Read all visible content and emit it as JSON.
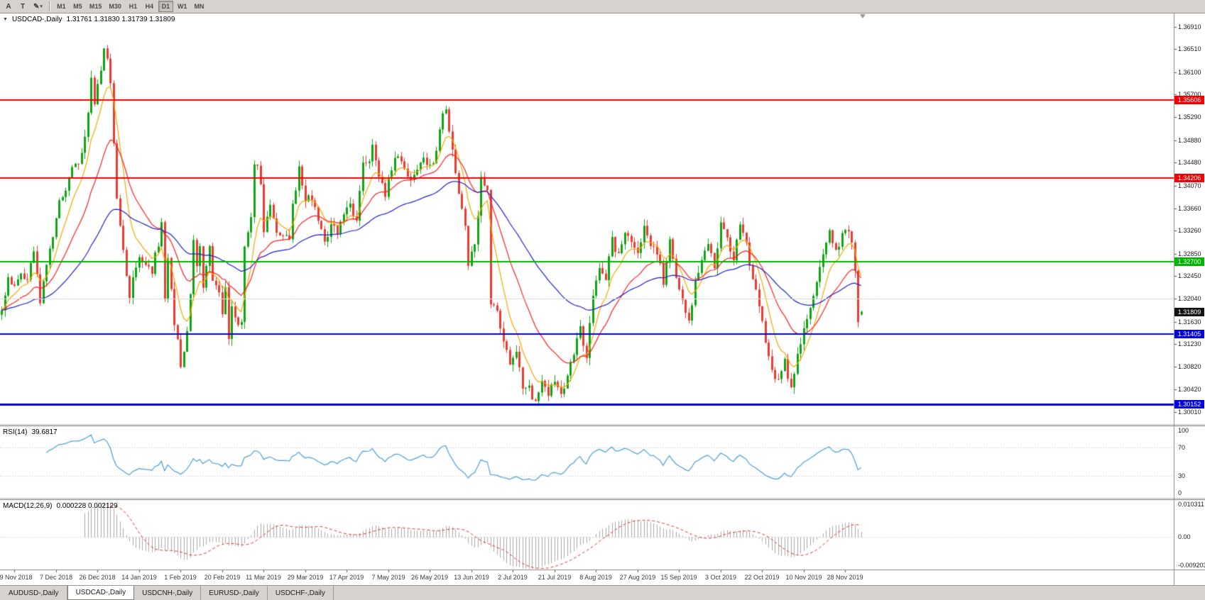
{
  "toolbar": {
    "tools": [
      {
        "name": "cursor-tool",
        "glyph": "A"
      },
      {
        "name": "text-tool",
        "glyph": "T"
      },
      {
        "name": "draw-tool",
        "glyph": "✎"
      }
    ],
    "dropdown_glyph": "▾",
    "timeframes": [
      "M1",
      "M5",
      "M15",
      "M30",
      "H1",
      "H4",
      "D1",
      "W1",
      "MN"
    ],
    "active_timeframe": "D1"
  },
  "chart": {
    "menu_icon": "▼",
    "title": "USDCAD-,Daily",
    "ohlc": "1.31761 1.31830 1.31739 1.31809",
    "last_candle": {
      "o": 1.31761,
      "h": 1.3183,
      "l": 1.31739,
      "c": 1.31809
    },
    "current_price": {
      "label": "1.31809",
      "price": 1.31809
    },
    "y_max": 1.3715,
    "y_min": 1.2981,
    "y_ticks": [
      "1.36910",
      "1.36510",
      "1.36100",
      "1.35700",
      "1.35290",
      "1.34880",
      "1.34480",
      "1.34070",
      "1.33660",
      "1.33260",
      "1.32850",
      "1.32450",
      "1.32040",
      "1.31630",
      "1.31230",
      "1.30820",
      "1.30420",
      "1.30010"
    ],
    "hlines": [
      {
        "price": 1.35606,
        "color": "#f40000",
        "width": 2,
        "badge": "1.35606"
      },
      {
        "price": 1.34206,
        "color": "#f40000",
        "width": 2,
        "badge": "1.34206"
      },
      {
        "price": 1.327,
        "color": "#00b400",
        "width": 2,
        "badge": "1.32700"
      },
      {
        "price": 1.3204,
        "color": "#d8d8d8",
        "width": 1,
        "badge": ""
      },
      {
        "price": 1.31405,
        "color": "#0000e1",
        "width": 2,
        "badge": "1.31405"
      },
      {
        "price": 1.30152,
        "color": "#0000e1",
        "width": 3,
        "badge": "1.30152"
      }
    ],
    "colors": {
      "bull": "#10a312",
      "bear": "#ea3b33",
      "ma_fast": "#f2a900",
      "ma_mid": "#ff1e1e",
      "ma_slow": "#1f1fd0"
    },
    "bars": 270,
    "x_labels": [
      "19 Nov 2018",
      "7 Dec 2018",
      "26 Dec 2018",
      "14 Jan 2019",
      "1 Feb 2019",
      "20 Feb 2019",
      "11 Mar 2019",
      "29 Mar 2019",
      "17 Apr 2019",
      "7 May 2019",
      "26 May 2019",
      "13 Jun 2019",
      "2 Jul 2019",
      "21 Jul 2019",
      "8 Aug 2019",
      "27 Aug 2019",
      "15 Sep 2019",
      "3 Oct 2019",
      "22 Oct 2019",
      "10 Nov 2019",
      "28 Nov 2019"
    ],
    "price_path": [
      [
        0,
        1.3185
      ],
      [
        2,
        1.3245
      ],
      [
        4,
        1.3225
      ],
      [
        6,
        1.3255
      ],
      [
        8,
        1.324
      ],
      [
        10,
        1.329
      ],
      [
        12,
        1.3195
      ],
      [
        14,
        1.327
      ],
      [
        16,
        1.332
      ],
      [
        18,
        1.338
      ],
      [
        20,
        1.3395
      ],
      [
        22,
        1.344
      ],
      [
        24,
        1.345
      ],
      [
        26,
        1.349
      ],
      [
        28,
        1.36
      ],
      [
        29,
        1.356
      ],
      [
        31,
        1.362
      ],
      [
        32,
        1.365
      ],
      [
        33,
        1.363
      ],
      [
        34,
        1.3595
      ],
      [
        35,
        1.348
      ],
      [
        36,
        1.338
      ],
      [
        38,
        1.329
      ],
      [
        40,
        1.32
      ],
      [
        41,
        1.325
      ],
      [
        43,
        1.3275
      ],
      [
        45,
        1.326
      ],
      [
        47,
        1.3255
      ],
      [
        49,
        1.3305
      ],
      [
        50,
        1.334
      ],
      [
        51,
        1.321
      ],
      [
        52,
        1.3275
      ],
      [
        54,
        1.316
      ],
      [
        55,
        1.313
      ],
      [
        56,
        1.308
      ],
      [
        57,
        1.3115
      ],
      [
        58,
        1.3145
      ],
      [
        59,
        1.322
      ],
      [
        60,
        1.331
      ],
      [
        61,
        1.327
      ],
      [
        62,
        1.33
      ],
      [
        63,
        1.323
      ],
      [
        65,
        1.33
      ],
      [
        66,
        1.324
      ],
      [
        68,
        1.321
      ],
      [
        69,
        1.317
      ],
      [
        70,
        1.323
      ],
      [
        71,
        1.313
      ],
      [
        72,
        1.319
      ],
      [
        74,
        1.3155
      ],
      [
        75,
        1.316
      ],
      [
        76,
        1.329
      ],
      [
        77,
        1.332
      ],
      [
        78,
        1.335
      ],
      [
        79,
        1.344
      ],
      [
        80,
        1.345
      ],
      [
        81,
        1.341
      ],
      [
        82,
        1.333
      ],
      [
        84,
        1.338
      ],
      [
        86,
        1.333
      ],
      [
        88,
        1.332
      ],
      [
        90,
        1.331
      ],
      [
        91,
        1.337
      ],
      [
        93,
        1.344
      ],
      [
        95,
        1.338
      ],
      [
        97,
        1.3385
      ],
      [
        99,
        1.334
      ],
      [
        101,
        1.331
      ],
      [
        103,
        1.333
      ],
      [
        105,
        1.3325
      ],
      [
        107,
        1.335
      ],
      [
        109,
        1.338
      ],
      [
        111,
        1.334
      ],
      [
        113,
        1.344
      ],
      [
        115,
        1.3455
      ],
      [
        116,
        1.348
      ],
      [
        118,
        1.343
      ],
      [
        120,
        1.339
      ],
      [
        122,
        1.344
      ],
      [
        124,
        1.3465
      ],
      [
        126,
        1.344
      ],
      [
        128,
        1.342
      ],
      [
        130,
        1.344
      ],
      [
        132,
        1.3455
      ],
      [
        134,
        1.344
      ],
      [
        136,
        1.3465
      ],
      [
        138,
        1.3535
      ],
      [
        139,
        1.355
      ],
      [
        141,
        1.3465
      ],
      [
        143,
        1.34
      ],
      [
        145,
        1.333
      ],
      [
        146,
        1.327
      ],
      [
        148,
        1.33
      ],
      [
        150,
        1.342
      ],
      [
        152,
        1.3395
      ],
      [
        153,
        1.319
      ],
      [
        155,
        1.318
      ],
      [
        157,
        1.312
      ],
      [
        159,
        1.309
      ],
      [
        161,
        1.3105
      ],
      [
        163,
        1.305
      ],
      [
        165,
        1.3045
      ],
      [
        167,
        1.3018
      ],
      [
        169,
        1.306
      ],
      [
        171,
        1.3035
      ],
      [
        173,
        1.306
      ],
      [
        175,
        1.3028
      ],
      [
        177,
        1.306
      ],
      [
        179,
        1.311
      ],
      [
        181,
        1.315
      ],
      [
        183,
        1.3105
      ],
      [
        185,
        1.321
      ],
      [
        187,
        1.326
      ],
      [
        189,
        1.324
      ],
      [
        191,
        1.331
      ],
      [
        193,
        1.328
      ],
      [
        195,
        1.3325
      ],
      [
        197,
        1.33
      ],
      [
        199,
        1.329
      ],
      [
        201,
        1.333
      ],
      [
        203,
        1.33
      ],
      [
        205,
        1.329
      ],
      [
        207,
        1.323
      ],
      [
        209,
        1.331
      ],
      [
        211,
        1.3245
      ],
      [
        213,
        1.32
      ],
      [
        215,
        1.316
      ],
      [
        217,
        1.323
      ],
      [
        219,
        1.328
      ],
      [
        221,
        1.33
      ],
      [
        223,
        1.326
      ],
      [
        225,
        1.334
      ],
      [
        227,
        1.331
      ],
      [
        229,
        1.328
      ],
      [
        231,
        1.333
      ],
      [
        233,
        1.33
      ],
      [
        235,
        1.324
      ],
      [
        237,
        1.319
      ],
      [
        239,
        1.313
      ],
      [
        241,
        1.308
      ],
      [
        243,
        1.3055
      ],
      [
        245,
        1.3095
      ],
      [
        247,
        1.3042
      ],
      [
        249,
        1.31
      ],
      [
        251,
        1.315
      ],
      [
        253,
        1.319
      ],
      [
        255,
        1.324
      ],
      [
        257,
        1.329
      ],
      [
        259,
        1.332
      ],
      [
        261,
        1.329
      ],
      [
        263,
        1.3315
      ],
      [
        265,
        1.333
      ],
      [
        266,
        1.33
      ],
      [
        267,
        1.325
      ],
      [
        268,
        1.3165
      ],
      [
        269,
        1.31809
      ]
    ]
  },
  "rsi": {
    "label": "RSI(14)",
    "value": "39.6817",
    "period": 14,
    "color": "#4aa0dc",
    "levels": [
      "100",
      "70",
      "30",
      "0"
    ]
  },
  "macd": {
    "label": "MACD(12,26,9)",
    "values": "0.000228 0.002129",
    "fast": 12,
    "slow": 26,
    "signal": 9,
    "scale_labels": [
      "0.010311",
      "0.00",
      "-0.009203"
    ],
    "max": 0.010311,
    "min": -0.009203
  },
  "tabs": {
    "items": [
      "AUDUSD-,Daily",
      "USDCAD-,Daily",
      "USDCNH-,Daily",
      "EURUSD-,Daily",
      "USDCHF-,Daily"
    ],
    "active_index": 1
  }
}
